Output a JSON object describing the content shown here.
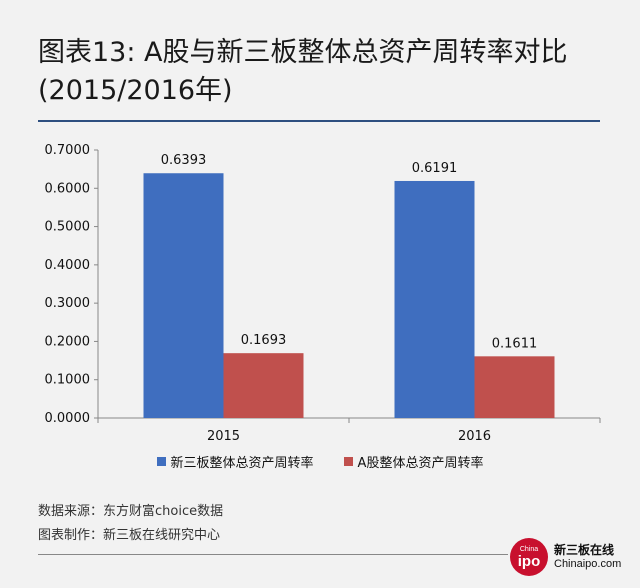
{
  "header": {
    "title": "图表13: A股与新三板整体总资产周转率对比(2015/2016年)"
  },
  "chart_data": {
    "type": "bar",
    "categories": [
      "2015",
      "2016"
    ],
    "series": [
      {
        "name": "新三板整体总资产周转率",
        "values": [
          0.6393,
          0.6191
        ],
        "color": "#3f6ebf",
        "labels": [
          "0.6393",
          "0.6191"
        ]
      },
      {
        "name": "A股整体总资产周转率",
        "values": [
          0.1693,
          0.1611
        ],
        "color": "#c0504d",
        "labels": [
          "0.1693",
          "0.1611"
        ]
      }
    ],
    "ylim": [
      0,
      0.7
    ],
    "yticks": [
      "0.0000",
      "0.1000",
      "0.2000",
      "0.3000",
      "0.4000",
      "0.5000",
      "0.6000",
      "0.7000"
    ],
    "grid": false,
    "legend_position": "bottom"
  },
  "footer": {
    "source_label": "数据来源：",
    "source_value": "东方财富choice数据",
    "maker_label": "图表制作：",
    "maker_value": "新三板在线研究中心"
  },
  "logo": {
    "badge_top": "China",
    "badge_main": "ipo",
    "name_cn": "新三板在线",
    "name_en": "Chinaipo.com"
  }
}
